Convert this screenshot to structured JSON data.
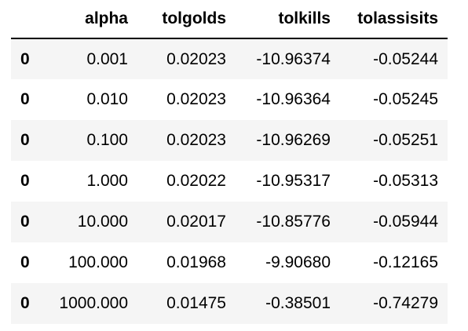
{
  "table": {
    "index_header": "",
    "columns": [
      "alpha",
      "tolgolds",
      "tolkills",
      "tolassisits"
    ],
    "rows": [
      {
        "index": "0",
        "alpha": "0.001",
        "tolgolds": "0.02023",
        "tolkills": "-10.96374",
        "tolassisits": "-0.05244"
      },
      {
        "index": "0",
        "alpha": "0.010",
        "tolgolds": "0.02023",
        "tolkills": "-10.96364",
        "tolassisits": "-0.05245"
      },
      {
        "index": "0",
        "alpha": "0.100",
        "tolgolds": "0.02023",
        "tolkills": "-10.96269",
        "tolassisits": "-0.05251"
      },
      {
        "index": "0",
        "alpha": "1.000",
        "tolgolds": "0.02022",
        "tolkills": "-10.95317",
        "tolassisits": "-0.05313"
      },
      {
        "index": "0",
        "alpha": "10.000",
        "tolgolds": "0.02017",
        "tolkills": "-10.85776",
        "tolassisits": "-0.05944"
      },
      {
        "index": "0",
        "alpha": "100.000",
        "tolgolds": "0.01968",
        "tolkills": "-9.90680",
        "tolassisits": "-0.12165"
      },
      {
        "index": "0",
        "alpha": "1000.000",
        "tolgolds": "0.01475",
        "tolkills": "-0.38501",
        "tolassisits": "-0.74279"
      }
    ]
  },
  "colors": {
    "stripe": "#f5f5f5",
    "background": "#ffffff",
    "header_rule": "#000000"
  }
}
